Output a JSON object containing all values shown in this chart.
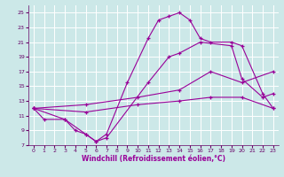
{
  "xlabel": "Windchill (Refroidissement éolien,°C)",
  "xlim": [
    -0.5,
    23.5
  ],
  "ylim": [
    7,
    26
  ],
  "yticks": [
    7,
    9,
    11,
    13,
    15,
    17,
    19,
    21,
    23,
    25
  ],
  "xticks": [
    0,
    1,
    2,
    3,
    4,
    5,
    6,
    7,
    8,
    9,
    10,
    11,
    12,
    13,
    14,
    15,
    16,
    17,
    18,
    19,
    20,
    21,
    22,
    23
  ],
  "bg_color": "#cce8e8",
  "grid_color": "#ffffff",
  "line_color": "#990099",
  "line1_x": [
    0,
    1,
    3,
    5,
    6,
    7,
    9,
    11,
    12,
    13,
    14,
    15,
    16,
    17,
    19,
    20,
    22,
    23
  ],
  "line1_y": [
    12,
    10.5,
    10.5,
    8.5,
    7.5,
    8.5,
    15.5,
    21.5,
    24,
    24.5,
    25.0,
    24.0,
    21.5,
    21.0,
    21.0,
    20.5,
    14.0,
    12.0
  ],
  "line2_x": [
    0,
    3,
    4,
    5,
    6,
    7,
    11,
    13,
    14,
    16,
    19,
    20,
    22,
    23
  ],
  "line2_y": [
    12,
    10.5,
    9.0,
    8.5,
    7.5,
    8.0,
    15.5,
    19.0,
    19.5,
    21.0,
    20.5,
    16.0,
    13.5,
    14.0
  ],
  "line3_x": [
    0,
    5,
    10,
    14,
    17,
    20,
    23
  ],
  "line3_y": [
    12,
    12.5,
    13.5,
    14.5,
    17.0,
    15.5,
    17.0
  ],
  "line4_x": [
    0,
    5,
    10,
    14,
    17,
    20,
    23
  ],
  "line4_y": [
    12,
    11.5,
    12.5,
    13.0,
    13.5,
    13.5,
    12.0
  ]
}
